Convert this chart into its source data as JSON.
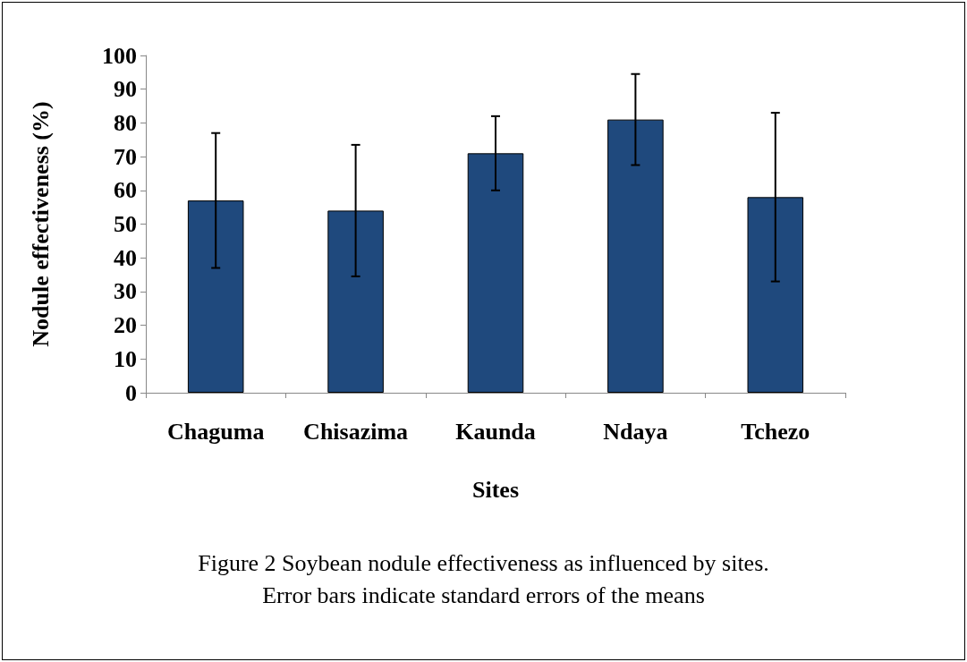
{
  "chart_data": {
    "type": "bar",
    "xlabel": "Sites",
    "ylabel": "Nodule effectiveness (%)",
    "categories": [
      "Chaguma",
      "Chisazima",
      "Kaunda",
      "Ndaya",
      "Tchezo"
    ],
    "values": [
      57,
      54,
      71,
      81,
      58
    ],
    "errors": [
      20,
      19.5,
      11,
      13.5,
      25
    ],
    "color": "#1f497d",
    "ylim": [
      0,
      100
    ],
    "yticks": [
      0,
      10,
      20,
      30,
      40,
      50,
      60,
      70,
      80,
      90,
      100
    ],
    "grid": false,
    "annotations": [
      "Figure 2 Soybean nodule effectiveness as influenced by sites.",
      "Error bars indicate standard errors of the means"
    ]
  }
}
